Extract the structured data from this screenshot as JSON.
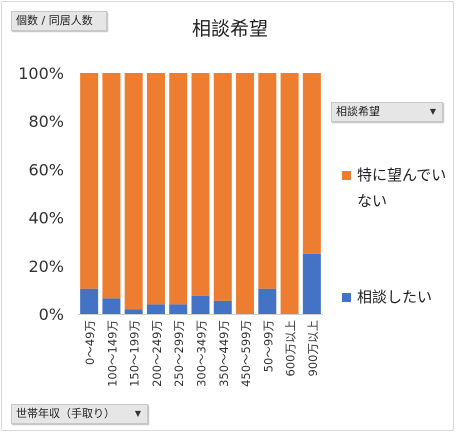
{
  "controls": {
    "value_field": "個数 / 同居人数",
    "series_field": "相談希望",
    "axis_field": "世帯年収（手取り）",
    "dropdown_glyph": "▼"
  },
  "chart_data": {
    "type": "bar",
    "stacked": "percent",
    "title": "相談希望",
    "categories": [
      "0～49万",
      "100～149万",
      "150～199万",
      "200～249万",
      "250～299万",
      "300～349万",
      "350～449万",
      "450～599万",
      "50～99万",
      "600万以上",
      "900万以上"
    ],
    "series": [
      {
        "name": "特に望んでいない",
        "color": "#ed7d31",
        "values": [
          89.5,
          93.5,
          98,
          96,
          96,
          92.5,
          94.5,
          100,
          89.5,
          100,
          75
        ]
      },
      {
        "name": "相談したい",
        "color": "#4472c4",
        "values": [
          10.5,
          6.5,
          2,
          4,
          4,
          7.5,
          5.5,
          0,
          10.5,
          0,
          25
        ]
      }
    ],
    "y_ticks": [
      "0%",
      "20%",
      "40%",
      "60%",
      "80%",
      "100%"
    ],
    "ylim": [
      0,
      100
    ],
    "grid": false,
    "legend": "right"
  }
}
